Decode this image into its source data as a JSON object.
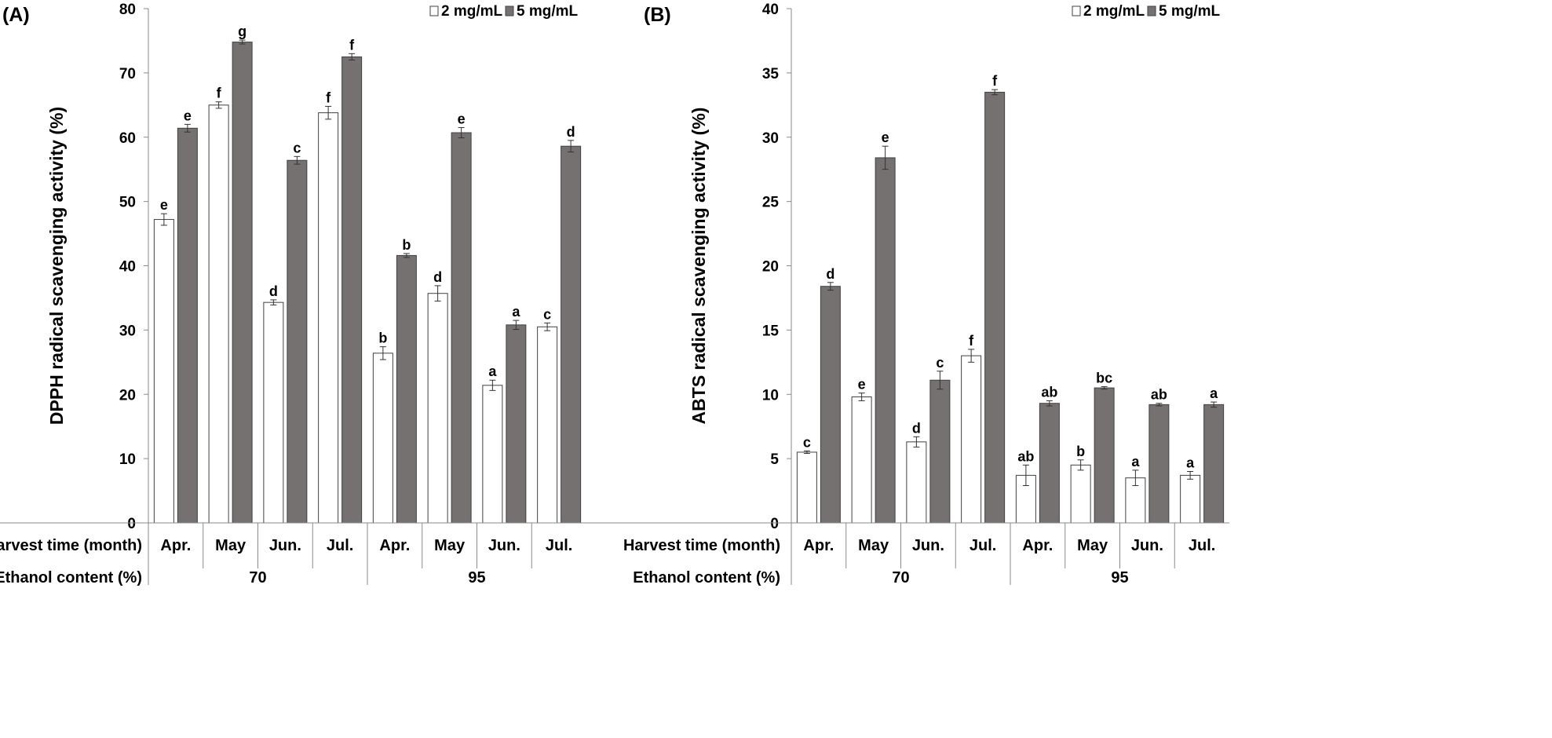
{
  "chart_data": [
    {
      "type": "bar",
      "panel_label": "(A)",
      "ylabel": "DPPH radical scavenging activity (%)",
      "ylim": [
        0,
        80
      ],
      "ytick_step": 10,
      "yticks": [
        "0",
        "10",
        "20",
        "30",
        "40",
        "50",
        "60",
        "70",
        "80"
      ],
      "legend_position": "top-right",
      "row_labels": [
        "Harvest time (month)",
        "Ethanol content (%)"
      ],
      "categories": [
        "Apr.",
        "May",
        "Jun.",
        "Jul.",
        "Apr.",
        "May",
        "Jun.",
        "Jul."
      ],
      "groups": [
        {
          "label": "70",
          "span": 4
        },
        {
          "label": "95",
          "span": 4
        }
      ],
      "series": [
        {
          "name": "2 mg/mL",
          "color": "#ffffff",
          "values": [
            47.2,
            65.0,
            34.3,
            63.8,
            26.4,
            35.7,
            21.4,
            30.5
          ],
          "errors": [
            0.9,
            0.5,
            0.4,
            1.0,
            1.0,
            1.2,
            0.8,
            0.6
          ],
          "letters": [
            "e",
            "f",
            "d",
            "f",
            "b",
            "d",
            "a",
            "c"
          ]
        },
        {
          "name": "5 mg/mL",
          "color": "#767171",
          "values": [
            61.4,
            74.8,
            56.4,
            72.5,
            41.6,
            60.7,
            30.8,
            58.6
          ],
          "errors": [
            0.6,
            0.3,
            0.6,
            0.5,
            0.3,
            0.8,
            0.7,
            0.9
          ],
          "letters": [
            "e",
            "g",
            "c",
            "f",
            "b",
            "e",
            "a",
            "d"
          ]
        }
      ]
    },
    {
      "type": "bar",
      "panel_label": "(B)",
      "ylabel": "ABTS radical scavenging activity (%)",
      "ylim": [
        0,
        40
      ],
      "ytick_step": 5,
      "yticks": [
        "0",
        "5",
        "10",
        "15",
        "20",
        "25",
        "30",
        "35",
        "40"
      ],
      "legend_position": "top-right",
      "row_labels": [
        "Harvest time (month)",
        "Ethanol content (%)"
      ],
      "categories": [
        "Apr.",
        "May",
        "Jun.",
        "Jul.",
        "Apr.",
        "May",
        "Jun.",
        "Jul."
      ],
      "groups": [
        {
          "label": "70",
          "span": 4
        },
        {
          "label": "95",
          "span": 4
        }
      ],
      "series": [
        {
          "name": "2 mg/mL",
          "color": "#ffffff",
          "values": [
            5.5,
            9.8,
            6.3,
            13.0,
            3.7,
            4.5,
            3.5,
            3.7
          ],
          "errors": [
            0.1,
            0.3,
            0.4,
            0.5,
            0.8,
            0.4,
            0.6,
            0.3
          ],
          "letters": [
            "c",
            "e",
            "d",
            "f",
            "ab",
            "b",
            "a",
            "a"
          ]
        },
        {
          "name": "5 mg/mL",
          "color": "#767171",
          "values": [
            18.4,
            28.4,
            11.1,
            33.5,
            9.3,
            10.5,
            9.2,
            9.2
          ],
          "errors": [
            0.3,
            0.9,
            0.7,
            0.2,
            0.2,
            0.1,
            0.1,
            0.2
          ],
          "letters": [
            "d",
            "e",
            "c",
            "f",
            "ab",
            "bc",
            "ab",
            "a"
          ]
        }
      ]
    }
  ]
}
